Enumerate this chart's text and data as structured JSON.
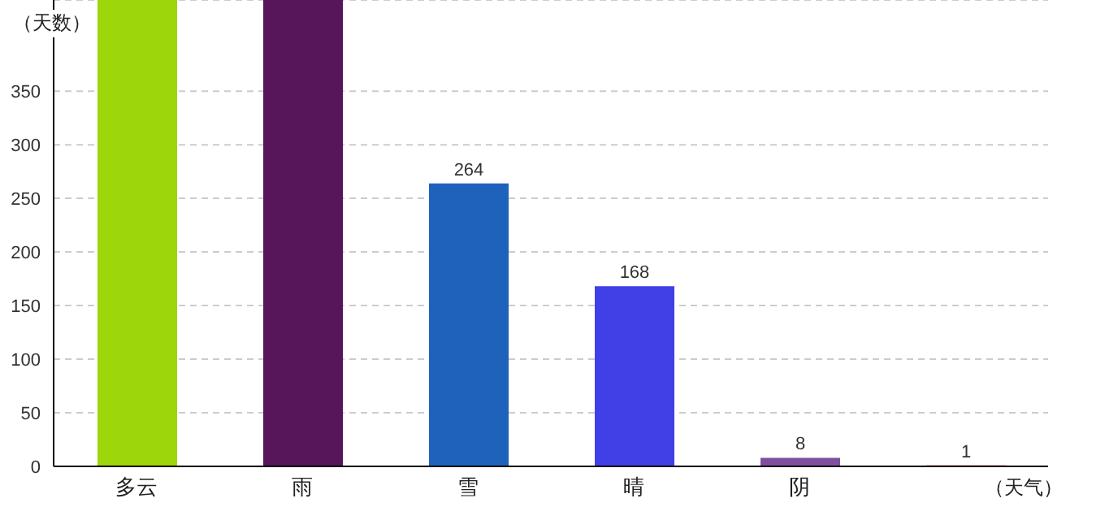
{
  "chart_data": {
    "type": "bar",
    "xlabel": "（天气）",
    "ylabel": "（天数）",
    "categories": [
      "多云",
      "雨",
      "雪",
      "晴",
      "阴",
      null
    ],
    "values": [
      435,
      435,
      264,
      168,
      8,
      1
    ],
    "colors": [
      "#9dd60b",
      "#561659",
      "#1f62bb",
      "#4040e6",
      "#7f50a0",
      "#b0301a"
    ],
    "value_labels": [
      null,
      null,
      "264",
      "168",
      "8",
      "1"
    ],
    "ylim": [
      0,
      435
    ],
    "yticks": [
      0,
      50,
      100,
      150,
      200,
      250,
      300,
      350
    ],
    "grid": "y"
  }
}
